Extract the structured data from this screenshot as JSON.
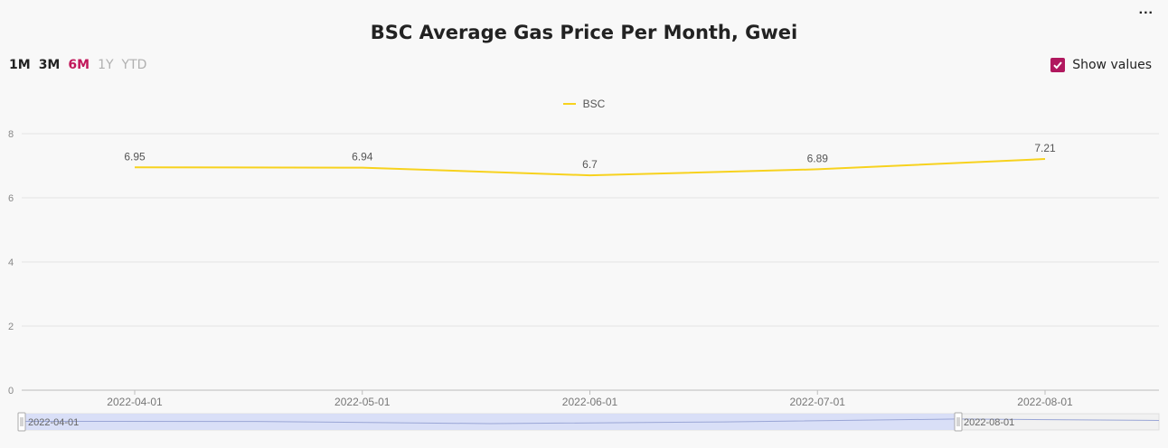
{
  "header": {
    "title": "BSC Average Gas Price Per Month, Gwei",
    "menu_icon": "ellipsis-icon",
    "menu_label": "..."
  },
  "range_buttons": [
    {
      "label": "1M",
      "state": "normal"
    },
    {
      "label": "3M",
      "state": "normal"
    },
    {
      "label": "6M",
      "state": "active"
    },
    {
      "label": "1Y",
      "state": "disabled"
    },
    {
      "label": "YTD",
      "state": "disabled"
    }
  ],
  "show_values": {
    "label": "Show values",
    "checked": true
  },
  "colors": {
    "series": "#f7d21e",
    "accent": "#c2185b",
    "checkbox": "#b0185e",
    "zoom_fill": "#d6ddf7"
  },
  "zoom": {
    "start_label": "2022-04-01",
    "end_label": "2022-08-01"
  },
  "chart_data": {
    "type": "line",
    "title": "BSC Average Gas Price Per Month, Gwei",
    "x": [
      "2022-04-01",
      "2022-05-01",
      "2022-06-01",
      "2022-07-01",
      "2022-08-01"
    ],
    "series": [
      {
        "name": "BSC",
        "values": [
          6.95,
          6.94,
          6.7,
          6.89,
          7.21
        ]
      }
    ],
    "ylim": [
      0,
      8
    ],
    "yticks": [
      0,
      2,
      4,
      6,
      8
    ],
    "grid": true,
    "legend": "top-center",
    "data_labels": true
  }
}
